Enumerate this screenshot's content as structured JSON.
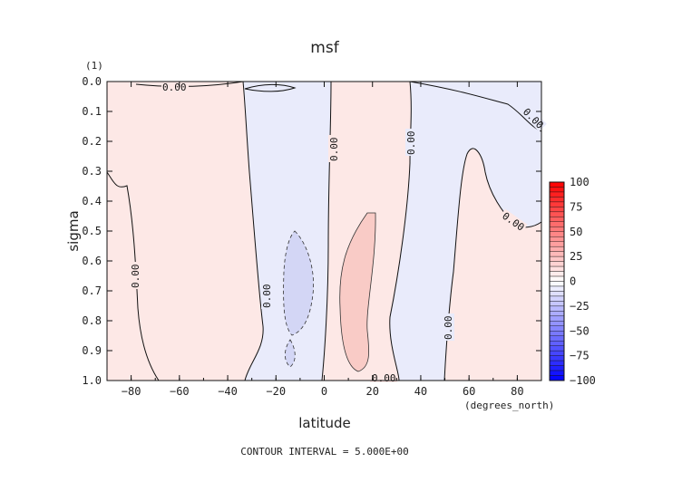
{
  "chart_data": {
    "type": "heatmap",
    "title": "msf",
    "units_label": "(1)",
    "xlabel": "latitude",
    "xunits": "(degrees_north)",
    "ylabel": "sigma",
    "xlim": [
      -90,
      90
    ],
    "ylim": [
      0.0,
      1.0
    ],
    "y_inverted": true,
    "x_ticks": [
      -80,
      -60,
      -40,
      -20,
      0,
      20,
      40,
      60,
      80
    ],
    "y_ticks": [
      "0.0",
      "0.1",
      "0.2",
      "0.3",
      "0.4",
      "0.5",
      "0.6",
      "0.7",
      "0.8",
      "0.9",
      "1.0"
    ],
    "contour_interval_text": "CONTOUR INTERVAL = 5.000E+00",
    "zero_contour_label": "0.00",
    "colorbar": {
      "ticks": [
        "100",
        "75",
        "50",
        "25",
        "0",
        "-25",
        "-50",
        "-75",
        "-100"
      ],
      "range": [
        -100,
        100
      ],
      "colormap": "blue-white-red"
    },
    "regions": [
      {
        "sign": "positive",
        "lat_range": [
          -88,
          -30
        ],
        "approx_value": 2
      },
      {
        "sign": "negative",
        "lat_range": [
          -30,
          0
        ],
        "approx_value": -3,
        "min_contour": -5,
        "min_center": [
          -12,
          0.7
        ]
      },
      {
        "sign": "positive",
        "lat_range": [
          0,
          35
        ],
        "approx_value": 4,
        "max_contour": 5,
        "max_center": [
          12,
          0.7
        ]
      },
      {
        "sign": "negative",
        "lat_range": [
          35,
          55
        ],
        "approx_value": -1
      },
      {
        "sign": "positive",
        "lat_range": [
          55,
          90
        ],
        "approx_value": 1
      }
    ],
    "colors": {
      "positive_fill": "#fde8e6",
      "positive_strong": "#f9cbc6",
      "negative_fill": "#e9ebfb",
      "negative_strong": "#d3d6f5",
      "contour_line": "#111111"
    }
  }
}
